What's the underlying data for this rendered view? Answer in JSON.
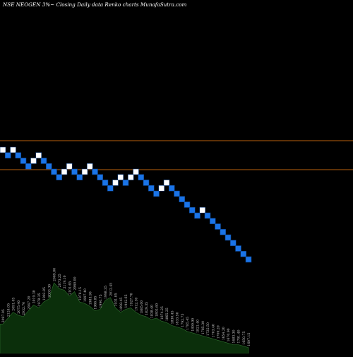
{
  "header": {
    "title": "NSE NEOGEN  3%~  Closing Daily data  Renko  charts MunafaSutra.com"
  },
  "colors": {
    "background": "#000000",
    "up_brick": "#ffffff",
    "down_brick": "#1a74e8",
    "brick_outline": "#0b3a78",
    "level_line": "#b8600c",
    "volume_fill": "#0b2f0b",
    "volume_edge": "#2f6f2f",
    "volume_label": "#cccccc",
    "text": "#ffffff"
  },
  "chart_data": {
    "type": "renko",
    "title": "NSE NEOGEN  3%~  Closing Daily data  Renko  charts MunafaSutra.com",
    "bricks": [
      "up",
      "down",
      "up",
      "down",
      "down",
      "down",
      "up",
      "up",
      "down",
      "down",
      "down",
      "down",
      "up",
      "up",
      "down",
      "down",
      "up",
      "up",
      "down",
      "down",
      "down",
      "down",
      "up",
      "up",
      "down",
      "up",
      "up",
      "down",
      "down",
      "down",
      "down",
      "up",
      "up",
      "down",
      "down",
      "down",
      "down",
      "down",
      "down",
      "up",
      "down",
      "down",
      "down",
      "down",
      "down",
      "down",
      "down",
      "down",
      "down"
    ],
    "horizontal_levels": [
      "resistance",
      "support"
    ],
    "volume_labels": [
      "2097.95",
      "2124.05",
      "2091.05",
      "2075.40",
      "2032.70",
      "2047.20",
      "2019.30",
      "1978.35",
      "1992.85",
      "2003.30",
      "2069.80",
      "2073.25",
      "2119.10",
      "2101.65",
      "2060.00",
      "1978.15",
      "1997.40",
      "1983.90",
      "1966.85",
      "1990.75",
      "1998.35",
      "2012.45",
      "1931.05",
      "1898.45",
      "1942.65",
      "1927.70",
      "1912.30",
      "1885.00",
      "1829.35",
      "1838.40",
      "1802.60",
      "1874.25",
      "1865.25",
      "1830.45",
      "1833.50",
      "1792.75",
      "1785.45",
      "1809.90",
      "1821.40",
      "1785.30",
      "1725.50",
      "1703.40",
      "1700.20",
      "1654.20",
      "1670.90",
      "1683.30",
      "1701.40",
      "1650.75",
      "1607.15"
    ],
    "volume": [
      40,
      48,
      56,
      52,
      50,
      58,
      66,
      62,
      70,
      74,
      96,
      88,
      86,
      78,
      84,
      70,
      68,
      64,
      58,
      60,
      72,
      76,
      62,
      56,
      60,
      62,
      56,
      52,
      50,
      46,
      48,
      44,
      42,
      38,
      36,
      34,
      30,
      28,
      26,
      24,
      22,
      20,
      18,
      16,
      14,
      12,
      12,
      10,
      8
    ]
  }
}
